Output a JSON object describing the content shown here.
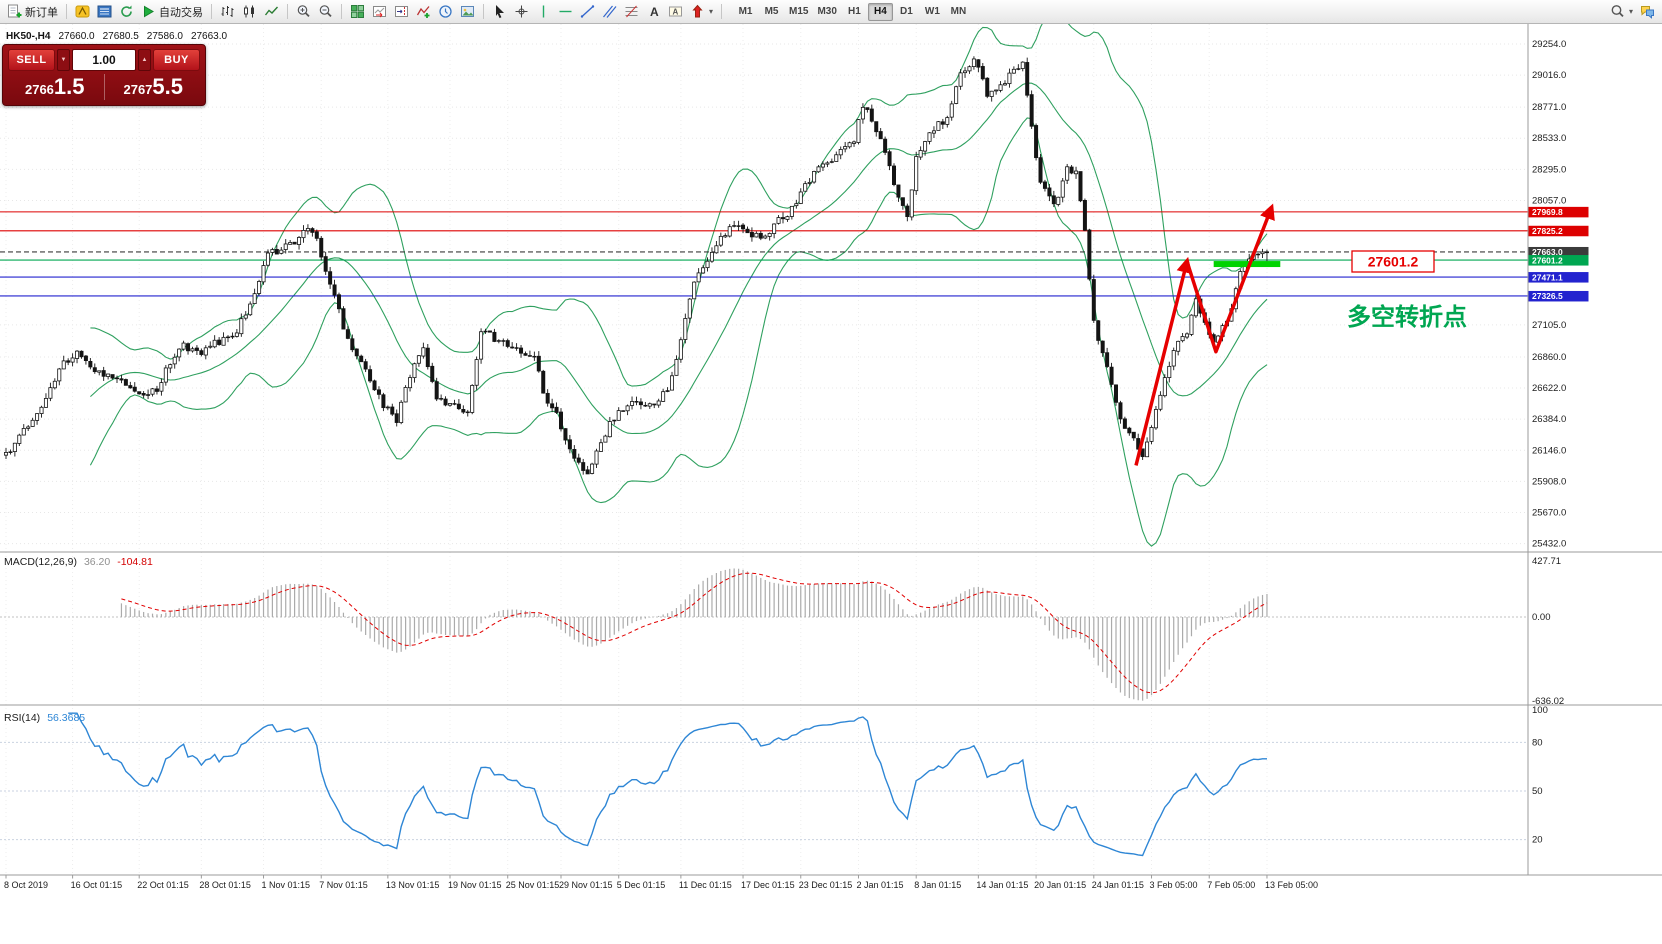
{
  "toolbar": {
    "new_order_label": "新订单",
    "auto_trading_label": "自动交易",
    "timeframes": [
      "M1",
      "M5",
      "M15",
      "M30",
      "H1",
      "H4",
      "D1",
      "W1",
      "MN"
    ],
    "active_timeframe": "H4",
    "icons": [
      "new-order-icon",
      "metaeditor-icon",
      "data-window-icon",
      "refresh-icon",
      "auto-trading-play-icon",
      "bar-chart-icon",
      "candlestick-chart-icon",
      "line-chart-icon",
      "zoom-in-icon",
      "zoom-out-icon",
      "tile-windows-icon",
      "auto-scroll-icon",
      "chart-shift-icon",
      "indicators-add-icon",
      "periods-icon",
      "template-icon",
      "cursor-icon",
      "crosshair-icon",
      "vertical-line-icon",
      "horizontal-line-icon",
      "trendline-icon",
      "channel-icon",
      "fibonacci-icon",
      "text-icon",
      "text-label-icon",
      "arrows-icon",
      "search-icon",
      "chat-icon"
    ]
  },
  "glyphs": {
    "up_arrow": "▲",
    "down_arrow": "▼",
    "dropdown_arrow": "▾"
  },
  "trade_panel": {
    "sell_label": "SELL",
    "buy_label": "BUY",
    "volume": "1.00",
    "sell_price_prefix": "2766",
    "sell_price_big": "1.5",
    "buy_price_prefix": "2767",
    "buy_price_big": "5.5"
  },
  "symbol_info": {
    "symbol": "HK50-,H4",
    "open": "27660.0",
    "high": "27680.5",
    "low": "27586.0",
    "close": "27663.0"
  },
  "chart_data": {
    "type": "candlestick",
    "symbol": "HK50-",
    "timeframe": "H4",
    "ohlc_current": {
      "open": 27660.0,
      "high": 27680.5,
      "low": 27586.0,
      "close": 27663.0
    },
    "y_ticks": [
      29254.0,
      29016.0,
      28771.0,
      28533.0,
      28295.0,
      28057.0,
      27105.0,
      26860.0,
      26622.0,
      26384.0,
      26146.0,
      25908.0,
      25670.0,
      25432.0
    ],
    "price_markers": [
      {
        "price": 27969.8,
        "label": "27969.8",
        "color": "#dd0000",
        "line": "solid"
      },
      {
        "price": 27825.2,
        "label": "27825.2",
        "color": "#dd0000",
        "line": "solid"
      },
      {
        "price": 27663.0,
        "label": "27663.0",
        "color": "#3b3b3b",
        "line": "dashed"
      },
      {
        "price": 27601.2,
        "label": "27601.2",
        "color": "#00a651",
        "line": "solid"
      },
      {
        "price": 27471.1,
        "label": "27471.1",
        "color": "#2323cf",
        "line": "solid"
      },
      {
        "price": 27326.5,
        "label": "27326.5",
        "color": "#2323cf",
        "line": "solid"
      }
    ],
    "x_labels": [
      {
        "label": "8 Oct 2019",
        "idx": 0
      },
      {
        "label": "16 Oct 01:15",
        "idx": 15
      },
      {
        "label": "22 Oct 01:15",
        "idx": 30
      },
      {
        "label": "28 Oct 01:15",
        "idx": 44
      },
      {
        "label": "1 Nov 01:15",
        "idx": 58
      },
      {
        "label": "7 Nov 01:15",
        "idx": 71
      },
      {
        "label": "13 Nov 01:15",
        "idx": 86
      },
      {
        "label": "19 Nov 01:15",
        "idx": 100
      },
      {
        "label": "25 Nov 01:15",
        "idx": 113
      },
      {
        "label": "29 Nov 01:15",
        "idx": 125
      },
      {
        "label": "5 Dec 01:15",
        "idx": 138
      },
      {
        "label": "11 Dec 01:15",
        "idx": 152
      },
      {
        "label": "17 Dec 01:15",
        "idx": 166
      },
      {
        "label": "23 Dec 01:15",
        "idx": 179
      },
      {
        "label": "2 Jan 01:15",
        "idx": 192
      },
      {
        "label": "8 Jan 01:15",
        "idx": 205
      },
      {
        "label": "14 Jan 01:15",
        "idx": 219
      },
      {
        "label": "20 Jan 01:15",
        "idx": 232
      },
      {
        "label": "24 Jan 01:15",
        "idx": 245
      },
      {
        "label": "3 Feb 05:00",
        "idx": 258
      },
      {
        "label": "7 Feb 05:00",
        "idx": 271
      },
      {
        "label": "13 Feb 05:00",
        "idx": 284
      }
    ],
    "price_path": [
      [
        0,
        26110
      ],
      [
        4,
        26300
      ],
      [
        8,
        26480
      ],
      [
        13,
        26820
      ],
      [
        16,
        26900
      ],
      [
        20,
        26760
      ],
      [
        26,
        26680
      ],
      [
        30,
        26560
      ],
      [
        34,
        26620
      ],
      [
        39,
        26950
      ],
      [
        44,
        26900
      ],
      [
        48,
        26980
      ],
      [
        52,
        27065
      ],
      [
        56,
        27350
      ],
      [
        59,
        27640
      ],
      [
        64,
        27715
      ],
      [
        68,
        27830
      ],
      [
        70,
        27750
      ],
      [
        73,
        27410
      ],
      [
        77,
        26990
      ],
      [
        81,
        26760
      ],
      [
        85,
        26500
      ],
      [
        88,
        26380
      ],
      [
        92,
        26820
      ],
      [
        94,
        26915
      ],
      [
        97,
        26530
      ],
      [
        101,
        26480
      ],
      [
        104,
        26450
      ],
      [
        107,
        27065
      ],
      [
        110,
        27000
      ],
      [
        113,
        26950
      ],
      [
        117,
        26870
      ],
      [
        119,
        26840
      ],
      [
        122,
        26500
      ],
      [
        124,
        26415
      ],
      [
        128,
        26070
      ],
      [
        131,
        25990
      ],
      [
        134,
        26225
      ],
      [
        138,
        26450
      ],
      [
        141,
        26490
      ],
      [
        145,
        26490
      ],
      [
        149,
        26610
      ],
      [
        152,
        26990
      ],
      [
        155,
        27450
      ],
      [
        157,
        27525
      ],
      [
        161,
        27790
      ],
      [
        165,
        27870
      ],
      [
        168,
        27800
      ],
      [
        171,
        27755
      ],
      [
        174,
        27900
      ],
      [
        176,
        27945
      ],
      [
        180,
        28175
      ],
      [
        184,
        28330
      ],
      [
        188,
        28420
      ],
      [
        191,
        28520
      ],
      [
        193,
        28790
      ],
      [
        196,
        28600
      ],
      [
        198,
        28405
      ],
      [
        201,
        28100
      ],
      [
        203,
        27950
      ],
      [
        205,
        28370
      ],
      [
        208,
        28600
      ],
      [
        212,
        28675
      ],
      [
        215,
        29020
      ],
      [
        218,
        29150
      ],
      [
        221,
        28865
      ],
      [
        224,
        28940
      ],
      [
        227,
        29050
      ],
      [
        229,
        29100
      ],
      [
        231,
        28600
      ],
      [
        233,
        28175
      ],
      [
        236,
        28020
      ],
      [
        239,
        28290
      ],
      [
        241,
        28290
      ],
      [
        243,
        27830
      ],
      [
        245,
        27140
      ],
      [
        248,
        26760
      ],
      [
        251,
        26380
      ],
      [
        254,
        26250
      ],
      [
        256,
        26080
      ],
      [
        258,
        26300
      ],
      [
        261,
        26720
      ],
      [
        264,
        27000
      ],
      [
        266,
        27065
      ],
      [
        268,
        27295
      ],
      [
        270,
        27100
      ],
      [
        272,
        26990
      ],
      [
        274,
        27100
      ],
      [
        276,
        27220
      ],
      [
        278,
        27490
      ],
      [
        281,
        27680
      ],
      [
        284,
        27663
      ]
    ],
    "annotations": {
      "level_box_label": "27601.2",
      "note_text": "多空转折点",
      "note_color": "#00a651",
      "zigzag_idx_price": [
        [
          254.5,
          26030
        ],
        [
          266,
          27590
        ],
        [
          272.5,
          26900
        ],
        [
          285,
          28000
        ]
      ],
      "support_bar": {
        "from_idx": 272,
        "to_idx": 287,
        "price": 27601.2,
        "color": "#00d300"
      }
    },
    "indicators": {
      "bollinger_color": "#2fa05f",
      "macd": {
        "label": "MACD(12,26,9)",
        "main_value": "36.20",
        "signal_value": "-104.81",
        "axis_max": "427.71",
        "axis_zero": "0.00",
        "axis_min": "-636.02"
      },
      "rsi": {
        "label": "RSI(14)",
        "value": "56.3685",
        "axis": [
          "100",
          "80",
          "50",
          "20"
        ],
        "levels": [
          80,
          50,
          20
        ]
      }
    }
  }
}
